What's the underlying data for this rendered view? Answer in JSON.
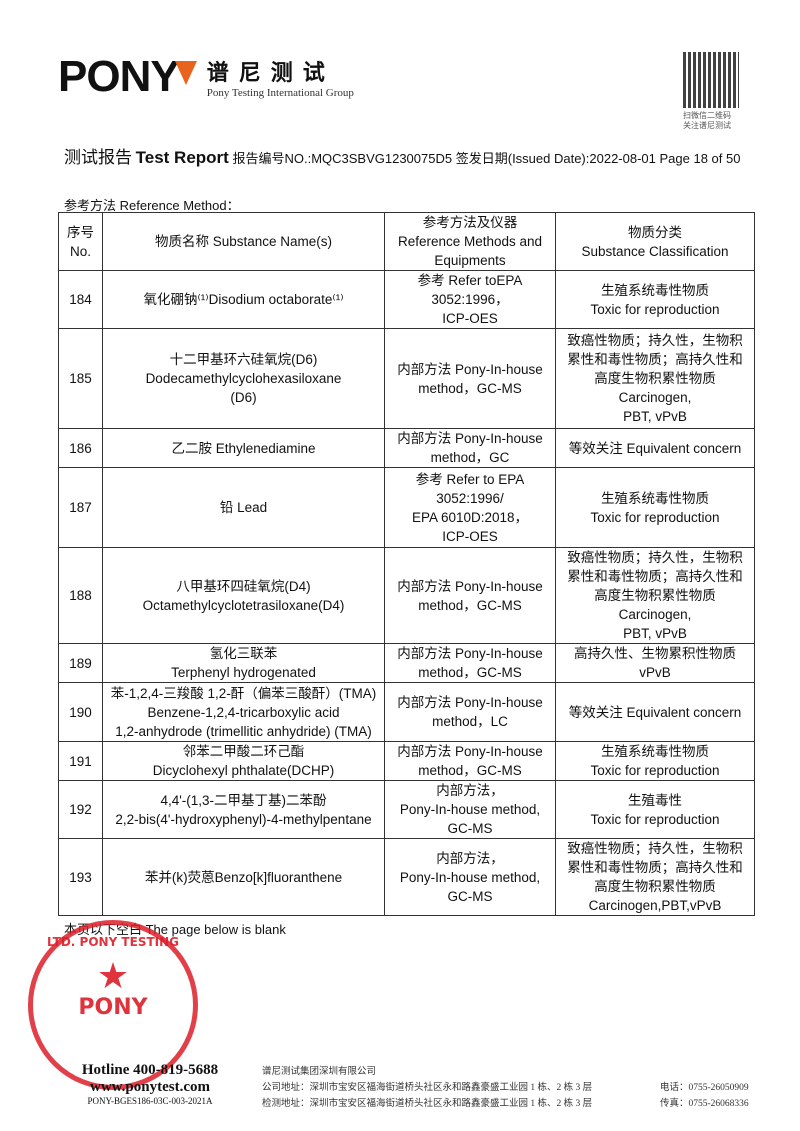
{
  "header": {
    "logo_text": "PONY",
    "logo_cn": "谱尼测试",
    "logo_en": "Pony Testing International Group",
    "qr_caption": [
      "扫微信二维码",
      "关注谱尼测试"
    ]
  },
  "title": {
    "cn": "测试报告",
    "en": "Test Report",
    "report_no_label": "报告编号NO.:",
    "report_no": "MQC3SBVG1230075D5",
    "issued_label": "签发日期(Issued Date):",
    "issued_date": "2022-08-01",
    "page": "Page 18 of 50"
  },
  "ref_label": "参考方法 Reference Method：",
  "table": {
    "headers": [
      [
        "序号",
        "No."
      ],
      [
        "物质名称 Substance Name(s)"
      ],
      [
        "参考方法及仪器",
        "Reference Methods and",
        "Equipments"
      ],
      [
        "物质分类",
        "Substance Classification"
      ]
    ],
    "rows": [
      {
        "no": "184",
        "name": [
          "氧化硼钠⁽¹⁾Disodium octaborate⁽¹⁾"
        ],
        "method": [
          "参考 Refer toEPA",
          "3052:1996，",
          "ICP-OES"
        ],
        "class": [
          "生殖系统毒性物质",
          "Toxic for reproduction"
        ]
      },
      {
        "no": "185",
        "name": [
          "十二甲基环六硅氧烷(D6)",
          "Dodecamethylcyclohexasiloxane",
          "(D6)"
        ],
        "method": [
          "内部方法 Pony-In-house",
          "method，GC-MS"
        ],
        "class": [
          "致癌性物质；持久性，生物积",
          "累性和毒性物质；高持久性和",
          "高度生物积累性物质",
          "Carcinogen,",
          "PBT, vPvB"
        ]
      },
      {
        "no": "186",
        "name": [
          "乙二胺 Ethylenediamine"
        ],
        "method": [
          "内部方法 Pony-In-house",
          "method，GC"
        ],
        "class": [
          "等效关注 Equivalent concern"
        ]
      },
      {
        "no": "187",
        "name": [
          "铅 Lead"
        ],
        "method": [
          "参考 Refer to EPA",
          "3052:1996/",
          "EPA 6010D:2018，",
          "ICP-OES"
        ],
        "class": [
          "生殖系统毒性物质",
          "Toxic for reproduction"
        ]
      },
      {
        "no": "188",
        "name": [
          "八甲基环四硅氧烷(D4)",
          "Octamethylcyclotetrasiloxane(D4)"
        ],
        "method": [
          "内部方法 Pony-In-house",
          "method，GC-MS"
        ],
        "class": [
          "致癌性物质；持久性，生物积",
          "累性和毒性物质；高持久性和",
          "高度生物积累性物质",
          "Carcinogen,",
          "PBT, vPvB"
        ]
      },
      {
        "no": "189",
        "name": [
          "氢化三联苯",
          "Terphenyl hydrogenated"
        ],
        "method": [
          "内部方法 Pony-In-house",
          "method，GC-MS"
        ],
        "class": [
          "高持久性、生物累积性物质",
          "vPvB"
        ]
      },
      {
        "no": "190",
        "name": [
          "苯-1,2,4-三羧酸 1,2-酐（偏苯三酸酐）(TMA)",
          "Benzene-1,2,4-tricarboxylic acid",
          "1,2-anhydrode (trimellitic anhydride) (TMA)"
        ],
        "method": [
          "内部方法 Pony-In-house",
          "method，LC"
        ],
        "class": [
          "等效关注 Equivalent concern"
        ]
      },
      {
        "no": "191",
        "name": [
          "邻苯二甲酸二环己酯",
          "Dicyclohexyl phthalate(DCHP)"
        ],
        "method": [
          "内部方法 Pony-In-house",
          "method，GC-MS"
        ],
        "class": [
          "生殖系统毒性物质",
          "Toxic for reproduction"
        ]
      },
      {
        "no": "192",
        "name": [
          "4,4'-(1,3-二甲基丁基)二苯酚",
          "2,2-bis(4'-hydroxyphenyl)-4-methylpentane"
        ],
        "method": [
          "内部方法，",
          "Pony-In-house method,",
          "GC-MS"
        ],
        "class": [
          "生殖毒性",
          "Toxic for reproduction"
        ]
      },
      {
        "no": "193",
        "name": [
          "苯并(k)荧蒽Benzo[k]fluoranthene"
        ],
        "method": [
          "内部方法，",
          "Pony-In-house method,",
          "GC-MS"
        ],
        "class": [
          "致癌性物质；持久性，生物积",
          "累性和毒性物质；高持久性和",
          "高度生物积累性物质",
          "Carcinogen,PBT,vPvB"
        ]
      }
    ]
  },
  "blank_note": "本页以下空白 The page below is blank",
  "stamp": {
    "ring": "LTD. PONY TESTING GROUP",
    "center": "PONY"
  },
  "footer": {
    "hotline": "Hotline 400-819-5688",
    "website": "www.ponytest.com",
    "code": "PONY-BGES186-03C-003-2021A",
    "company": "谱尼测试集团深圳有限公司",
    "company_addr": "公司地址：深圳市宝安区福海街道桥头社区永和路鑫豪盛工业园 1 栋、2 栋 3 层",
    "test_addr": "检测地址：深圳市宝安区福海街道桥头社区永和路鑫豪盛工业园 1 栋、2 栋 3 层",
    "phone": "电话：0755-26050909",
    "fax": "传真：0755-26068336"
  }
}
